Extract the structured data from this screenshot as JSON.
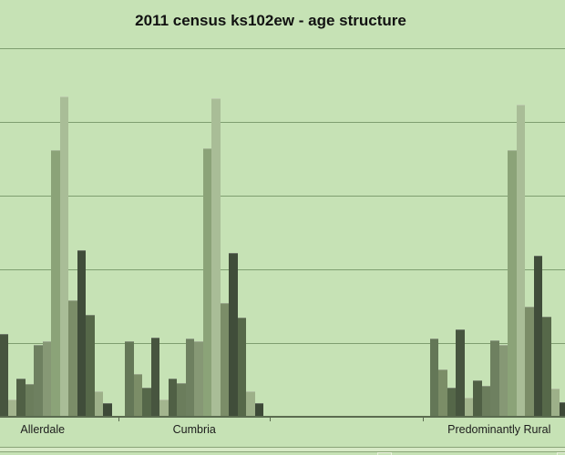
{
  "title": "2011 census ks102ew - age structure",
  "colors": {
    "background": "#c6e2b5",
    "gridline": "#7f9e70",
    "axis_line": "#5a6b4f",
    "label_text": "#1c1c1c",
    "title_text": "#121212",
    "bottom_divider": "#8aa377"
  },
  "chart_data": {
    "type": "bar",
    "title": "2011 census ks102ew - age structure",
    "legend_visible": false,
    "y_axis": {
      "tick_labels_visible": false,
      "gridline_count": 5,
      "gridline_interval_value": 5,
      "ylim": [
        0,
        28
      ]
    },
    "x_axis": {
      "categories": [
        "Allerdale",
        "Cumbria",
        "",
        "Predominantly Rural"
      ],
      "note_third_slot": "empty category slot - no bars, no label"
    },
    "series_count": 16,
    "series_colors": [
      "#647757",
      "#7b8d67",
      "#556749",
      "#47553f",
      "#a3b58e",
      "#506045",
      "#6b7d5c",
      "#6e8060",
      "#869875",
      "#8ba378",
      "#a9bd97",
      "#7b8d68",
      "#404d3a",
      "#566849",
      "#9db089",
      "#3d4937"
    ],
    "groups": [
      {
        "label": "Allerdale",
        "values": [
          null,
          null,
          null,
          5.6,
          1.2,
          2.6,
          2.2,
          4.9,
          5.1,
          18.1,
          21.7,
          7.9,
          11.3,
          6.9,
          1.7,
          0.9
        ],
        "note": "first three bars cut off at left edge of screenshot"
      },
      {
        "label": "Cumbria",
        "values": [
          5.1,
          2.9,
          2.0,
          5.4,
          1.2,
          2.6,
          2.3,
          5.3,
          5.1,
          18.2,
          21.6,
          7.7,
          11.1,
          6.7,
          1.7,
          0.9
        ]
      },
      {
        "label": "",
        "values": []
      },
      {
        "label": "Predominantly Rural",
        "values": [
          5.3,
          3.2,
          2.0,
          5.9,
          1.3,
          2.5,
          2.1,
          5.2,
          4.9,
          18.1,
          21.2,
          7.5,
          10.9,
          6.8,
          1.9,
          1.0
        ],
        "note": "last bar cut off at right edge of screenshot"
      }
    ]
  }
}
